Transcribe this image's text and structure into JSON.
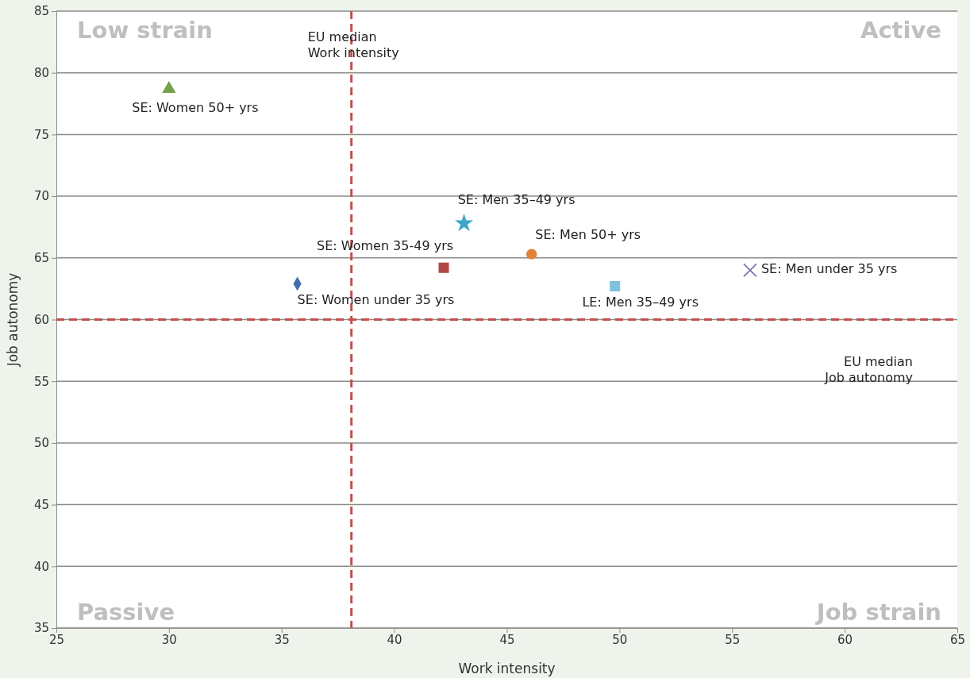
{
  "chart_data": {
    "type": "scatter",
    "xlabel": "Work intensity",
    "ylabel": "Job autonomy",
    "xlim": [
      25,
      65
    ],
    "xticks": [
      25,
      30,
      35,
      40,
      45,
      50,
      55,
      60,
      65
    ],
    "ylim": [
      35,
      85
    ],
    "yticks": [
      35,
      40,
      45,
      50,
      55,
      60,
      65,
      70,
      75,
      80,
      85
    ],
    "grid": "y",
    "legend": false,
    "series": [
      {
        "name": "SE: Women 50+ yrs",
        "color": "#77a04a",
        "marker": "triangle",
        "x": [
          30.0
        ],
        "values": [
          78.7
        ]
      },
      {
        "name": "SE: Women under 35 yrs",
        "color": "#3f6fb0",
        "marker": "diamond",
        "x": [
          35.7
        ],
        "values": [
          62.9
        ]
      },
      {
        "name": "SE: Women 35-49 yrs",
        "color": "#b04745",
        "marker": "square",
        "x": [
          42.2
        ],
        "values": [
          64.2
        ]
      },
      {
        "name": "SE: Men 35–49 yrs",
        "color": "#3fa6c8",
        "marker": "star",
        "x": [
          43.1
        ],
        "values": [
          67.8
        ]
      },
      {
        "name": "SE: Men 50+ yrs",
        "color": "#e0823c",
        "marker": "circle",
        "x": [
          46.1
        ],
        "values": [
          65.3
        ]
      },
      {
        "name": "LE: Men 35–49 yrs",
        "color": "#7fc1de",
        "marker": "square",
        "x": [
          49.8
        ],
        "values": [
          62.7
        ]
      },
      {
        "name": "SE: Men under 35 yrs",
        "color": "#7b6ba8",
        "marker": "cross",
        "x": [
          55.8
        ],
        "values": [
          64.0
        ]
      }
    ],
    "ref_lines": [
      {
        "axis": "x",
        "value": 38.1,
        "label": "EU median\nWork intensity",
        "color": "#c0504d",
        "line_style": "dashed"
      },
      {
        "axis": "y",
        "value": 60.0,
        "label": "EU median\nJob autonomy",
        "color": "#c0504d",
        "line_style": "dashed"
      }
    ],
    "annotations": [
      "Low strain",
      "Active",
      "Passive",
      "Job strain"
    ]
  }
}
